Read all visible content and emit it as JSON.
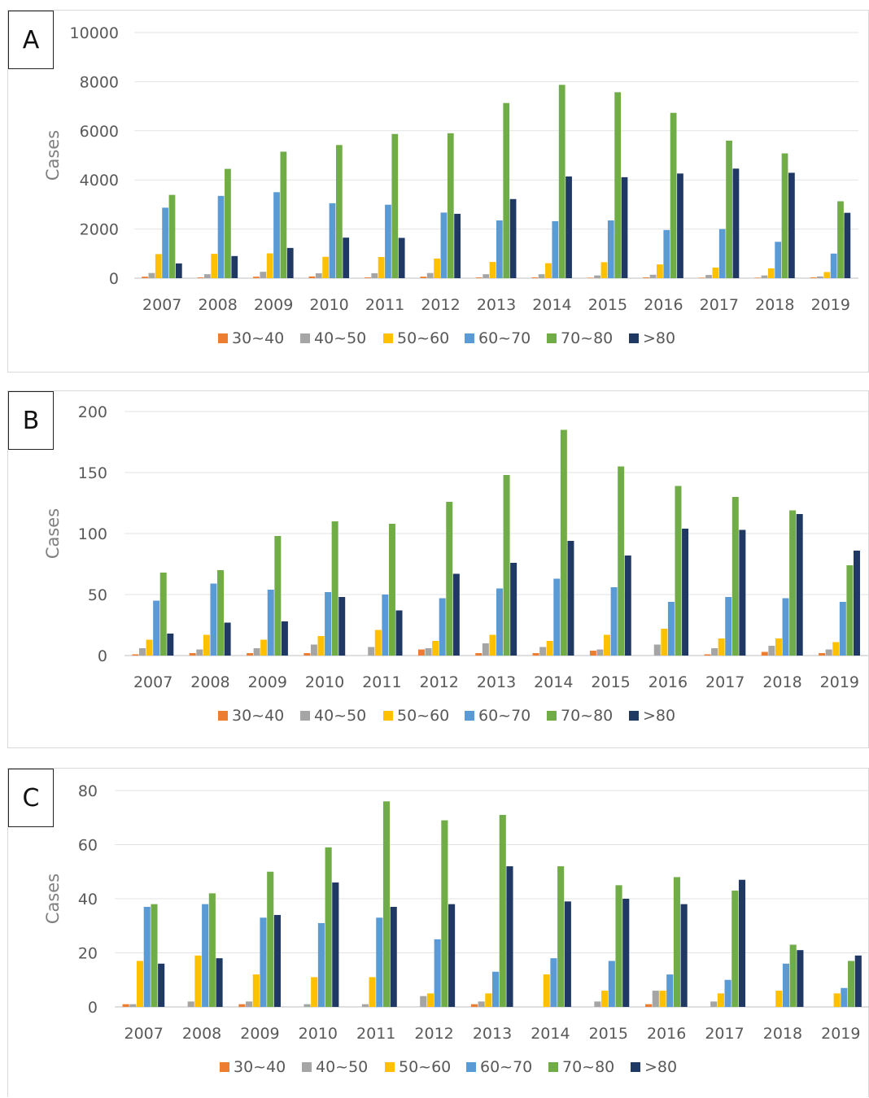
{
  "colors": {
    "30~40": "#ED7D31",
    "40~50": "#A5A5A5",
    "50~60": "#FFC000",
    "60~70": "#5B9BD5",
    "70~80": "#70AD47",
    ">80": "#1F3864"
  },
  "chart_data": [
    {
      "panel": "A",
      "type": "bar",
      "ylabel": "Cases",
      "ylim": [
        0,
        10000
      ],
      "yticks": [
        "0",
        "2000",
        "4000",
        "6000",
        "8000",
        "10000"
      ],
      "categories": [
        "2007",
        "2008",
        "2009",
        "2010",
        "2011",
        "2012",
        "2013",
        "2014",
        "2015",
        "2016",
        "2017",
        "2018",
        "2019"
      ],
      "legend_position": "bottom",
      "grid": true,
      "series": [
        {
          "name": "30~40",
          "values": [
            60,
            30,
            60,
            70,
            30,
            60,
            30,
            30,
            20,
            30,
            20,
            20,
            30
          ]
        },
        {
          "name": "40~50",
          "values": [
            210,
            160,
            260,
            200,
            200,
            210,
            160,
            160,
            110,
            140,
            130,
            110,
            70
          ]
        },
        {
          "name": "50~60",
          "values": [
            980,
            990,
            1010,
            870,
            860,
            800,
            660,
            610,
            650,
            560,
            430,
            400,
            250
          ]
        },
        {
          "name": "60~70",
          "values": [
            2870,
            3350,
            3500,
            3050,
            2990,
            2670,
            2350,
            2320,
            2350,
            1960,
            2000,
            1480,
            1000
          ]
        },
        {
          "name": "70~80",
          "values": [
            3390,
            4450,
            5150,
            5420,
            5870,
            5900,
            7130,
            7870,
            7570,
            6730,
            5600,
            5080,
            3130
          ]
        },
        {
          "name": ">80",
          "values": [
            600,
            900,
            1230,
            1650,
            1640,
            2620,
            3220,
            4140,
            4110,
            4260,
            4460,
            4290,
            2660
          ]
        }
      ]
    },
    {
      "panel": "B",
      "type": "bar",
      "ylabel": "Cases",
      "ylim": [
        0,
        200
      ],
      "yticks": [
        "0",
        "50",
        "100",
        "150",
        "200"
      ],
      "categories": [
        "2007",
        "2008",
        "2009",
        "2010",
        "2011",
        "2012",
        "2013",
        "2014",
        "2015",
        "2016",
        "2017",
        "2018",
        "2019"
      ],
      "legend_position": "bottom",
      "grid": true,
      "series": [
        {
          "name": "30~40",
          "values": [
            1,
            2,
            2,
            2,
            0,
            5,
            2,
            2,
            4,
            0,
            1,
            3,
            2
          ]
        },
        {
          "name": "40~50",
          "values": [
            6,
            5,
            6,
            9,
            7,
            6,
            10,
            7,
            5,
            9,
            6,
            8,
            5
          ]
        },
        {
          "name": "50~60",
          "values": [
            13,
            17,
            13,
            16,
            21,
            12,
            17,
            12,
            17,
            22,
            14,
            14,
            11
          ]
        },
        {
          "name": "60~70",
          "values": [
            45,
            59,
            54,
            52,
            50,
            47,
            55,
            63,
            56,
            44,
            48,
            47,
            44
          ]
        },
        {
          "name": "70~80",
          "values": [
            68,
            70,
            98,
            110,
            108,
            126,
            148,
            185,
            155,
            139,
            130,
            119,
            74
          ]
        },
        {
          "name": ">80",
          "values": [
            18,
            27,
            28,
            48,
            37,
            67,
            76,
            94,
            82,
            104,
            103,
            116,
            86
          ]
        }
      ]
    },
    {
      "panel": "C",
      "type": "bar",
      "ylabel": "Cases",
      "ylim": [
        0,
        80
      ],
      "yticks": [
        "0",
        "20",
        "40",
        "60",
        "80"
      ],
      "categories": [
        "2007",
        "2008",
        "2009",
        "2010",
        "2011",
        "2012",
        "2013",
        "2014",
        "2015",
        "2016",
        "2017",
        "2018",
        "2019"
      ],
      "legend_position": "bottom",
      "grid": true,
      "series": [
        {
          "name": "30~40",
          "values": [
            1,
            0,
            1,
            0,
            0,
            0,
            1,
            0,
            0,
            1,
            0,
            0,
            0
          ]
        },
        {
          "name": "40~50",
          "values": [
            1,
            2,
            2,
            1,
            1,
            4,
            2,
            0,
            2,
            6,
            2,
            0,
            0
          ]
        },
        {
          "name": "50~60",
          "values": [
            17,
            19,
            12,
            11,
            11,
            5,
            5,
            12,
            6,
            6,
            5,
            6,
            5
          ]
        },
        {
          "name": "60~70",
          "values": [
            37,
            38,
            33,
            31,
            33,
            25,
            13,
            18,
            17,
            12,
            10,
            16,
            7
          ]
        },
        {
          "name": "70~80",
          "values": [
            38,
            42,
            50,
            59,
            76,
            69,
            71,
            52,
            45,
            48,
            43,
            23,
            17
          ]
        },
        {
          "name": ">80",
          "values": [
            16,
            18,
            34,
            46,
            37,
            38,
            52,
            39,
            40,
            38,
            47,
            21,
            19
          ]
        }
      ]
    }
  ]
}
